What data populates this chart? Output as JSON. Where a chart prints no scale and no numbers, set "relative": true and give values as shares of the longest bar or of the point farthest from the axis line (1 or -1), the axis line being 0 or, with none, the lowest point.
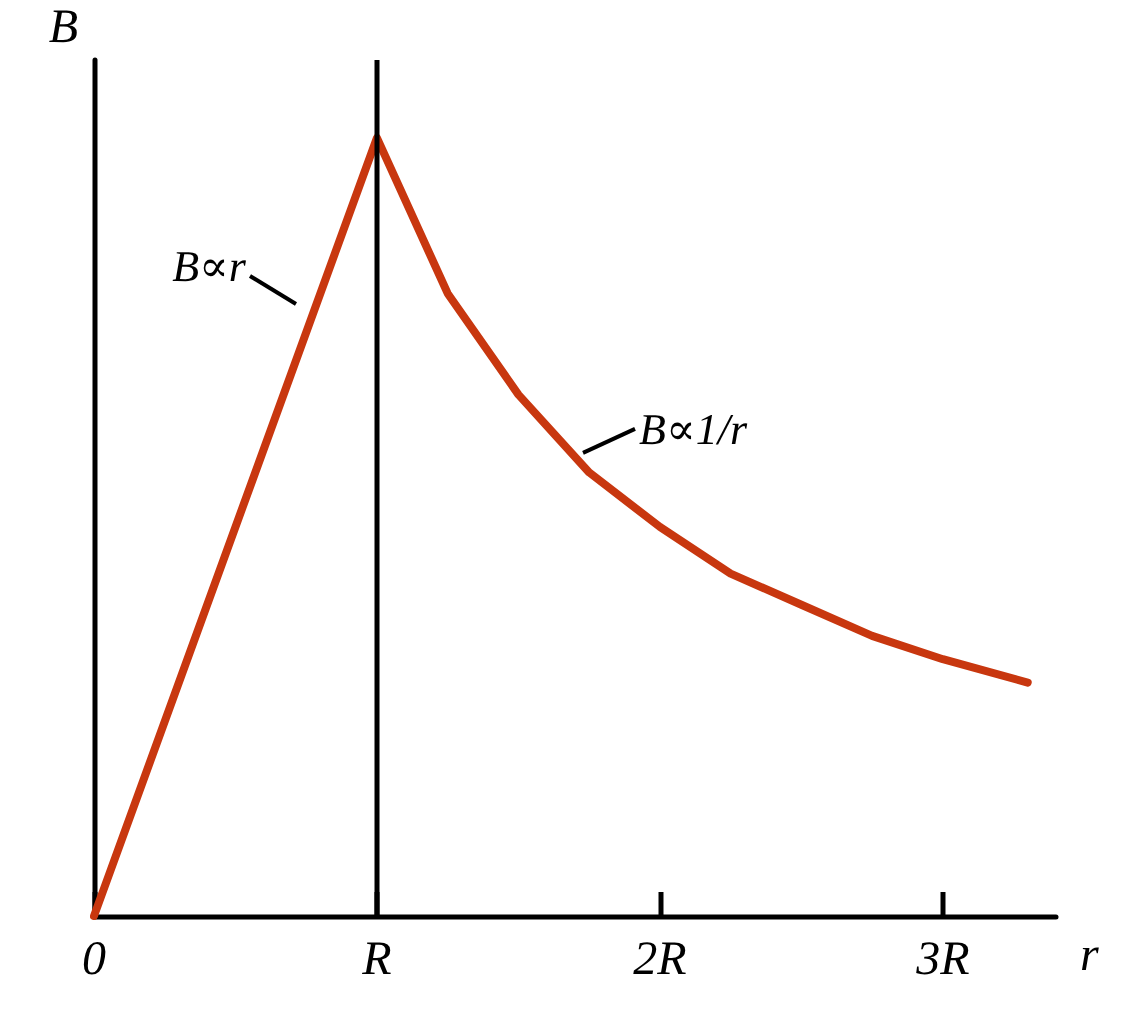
{
  "chart_data": {
    "type": "line",
    "relative": true,
    "xlabel": "r",
    "ylabel": "B",
    "x": [
      0,
      1,
      1.25,
      1.5,
      1.75,
      2,
      2.25,
      2.5,
      2.75,
      3,
      3.3
    ],
    "series": [
      {
        "color": "#c8370f",
        "values": [
          0,
          1,
          0.8,
          0.67,
          0.57,
          0.5,
          0.44,
          0.4,
          0.36,
          0.33,
          0.3
        ]
      }
    ],
    "xlim": [
      0,
      3.4
    ],
    "xticks": [
      {
        "value": 0,
        "label": "0"
      },
      {
        "value": 1,
        "label": "R"
      },
      {
        "value": 2,
        "label": "2R"
      },
      {
        "value": 3,
        "label": "3R"
      }
    ],
    "ref_lines": [
      {
        "axis": "x",
        "value": 1,
        "color": "#000000"
      }
    ],
    "annotations": [
      "B∝r",
      {
        "text": "B∝1/r",
        "x": 1.7,
        "y": 0.59
      }
    ],
    "grid": false,
    "marker": "none",
    "line_style": "solid"
  }
}
